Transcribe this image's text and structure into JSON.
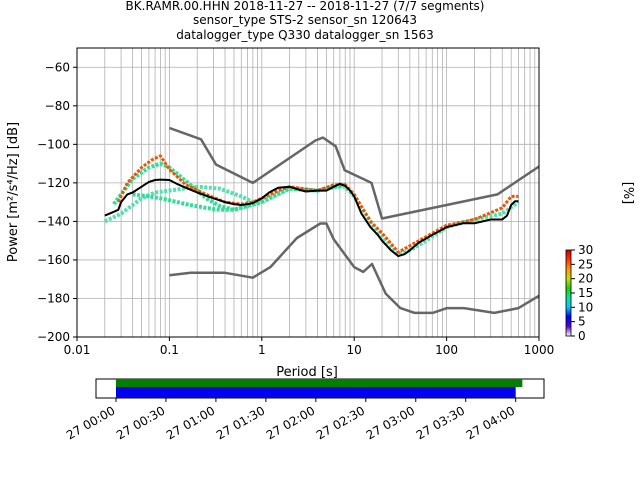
{
  "figure": {
    "title_lines": [
      "BK.RAMR.00.HHN   2018-11-27 -- 2018-11-27  (7/7 segments)",
      "sensor_type STS-2 sensor_sn 120643",
      "datalogger_type Q330 datalogger_sn 1563"
    ]
  },
  "chart_data": [
    {
      "type": "heatmap",
      "title": "BK.RAMR.00.HHN   2018-11-27 -- 2018-11-27  (7/7 segments)",
      "xlabel": "Period [s]",
      "ylabel": "Power [m²/s⁴/Hz] [dB]",
      "xscale": "log",
      "xlim": [
        0.01,
        1000
      ],
      "ylim": [
        -200,
        -50
      ],
      "xticks": [
        0.01,
        0.1,
        1,
        10,
        100,
        1000
      ],
      "xtick_labels": [
        "0.01",
        "0.1",
        "1",
        "10",
        "100",
        "1000"
      ],
      "yticks": [
        -200,
        -180,
        -160,
        -140,
        -120,
        -100,
        -80,
        -60
      ],
      "ytick_labels": [
        "−200",
        "−180",
        "−160",
        "−140",
        "−120",
        "−100",
        "−80",
        "−60"
      ],
      "grid": true,
      "series": [
        {
          "name": "",
          "role": "noise-model-high",
          "color": "#666666",
          "x": [
            0.1,
            0.22,
            0.32,
            0.8,
            3.8,
            4.6,
            6.3,
            7.9,
            15.4,
            20,
            354.8,
            1000
          ],
          "y": [
            -91.5,
            -97.4,
            -110.5,
            -120,
            -98,
            -96.5,
            -101,
            -113.5,
            -120,
            -138.5,
            -126,
            -111.5
          ]
        },
        {
          "name": "",
          "role": "noise-model-low",
          "color": "#666666",
          "x": [
            0.1,
            0.17,
            0.4,
            0.8,
            1.24,
            2.4,
            4.3,
            5,
            6,
            10,
            12.5,
            15.6,
            21.9,
            31.6,
            45,
            70.8,
            101,
            154,
            328,
            600,
            1000
          ],
          "y": [
            -168,
            -166.7,
            -166.7,
            -169.2,
            -163.7,
            -148.6,
            -141.1,
            -141.1,
            -149.3,
            -163.7,
            -166.2,
            -162.1,
            -177.5,
            -185,
            -187.5,
            -187.5,
            -185,
            -185,
            -187.5,
            -185,
            -178.6
          ]
        },
        {
          "name": "",
          "role": "mode",
          "color": "#000000",
          "x": [
            0.02,
            0.025,
            0.028,
            0.03,
            0.035,
            0.04,
            0.05,
            0.06,
            0.07,
            0.08,
            0.1,
            0.12,
            0.15,
            0.2,
            0.3,
            0.4,
            0.5,
            0.6,
            0.7,
            0.8,
            1,
            1.2,
            1.5,
            2,
            2.5,
            3,
            4,
            5,
            6,
            7,
            8,
            9,
            10,
            12,
            15,
            18,
            20,
            25,
            30,
            35,
            40,
            50,
            70,
            100,
            150,
            200,
            300,
            400,
            450,
            500,
            550,
            600
          ],
          "y": [
            -137,
            -135,
            -134,
            -130,
            -126,
            -125,
            -122,
            -119.5,
            -118.5,
            -118.3,
            -118.5,
            -120.5,
            -122.5,
            -125,
            -128,
            -130,
            -131,
            -131.5,
            -131,
            -130.5,
            -128,
            -125,
            -122.5,
            -122,
            -123.5,
            -124.5,
            -124,
            -124,
            -122,
            -120.5,
            -121.5,
            -124,
            -127,
            -136,
            -143,
            -147,
            -150,
            -155,
            -158,
            -157,
            -155,
            -151,
            -147,
            -143,
            -141,
            -141,
            -139,
            -139,
            -137,
            -131.5,
            -129.5,
            -129.5
          ]
        }
      ],
      "heatmap_bands": [
        {
          "label": "",
          "density_pct": 6,
          "color": "#55e0b0",
          "x": [
            0.02,
            0.03,
            0.05,
            0.07,
            0.1,
            0.2,
            0.35,
            0.6,
            0.8,
            1,
            2,
            4,
            6,
            8,
            10,
            15,
            20,
            25,
            30,
            40,
            60,
            100,
            200,
            400,
            600
          ],
          "y": [
            -140,
            -136,
            -128,
            -125,
            -124,
            -122,
            -123,
            -127,
            -130,
            -129,
            -123,
            -124,
            -122,
            -122,
            -127,
            -140,
            -149,
            -154,
            -157,
            -155,
            -150,
            -143,
            -139,
            -136,
            -130
          ]
        },
        {
          "label": "",
          "density_pct": 7,
          "color": "#33dd99",
          "x": [
            0.025,
            0.04,
            0.06,
            0.08,
            0.1,
            0.15,
            0.25,
            0.35,
            0.5,
            0.7,
            1,
            2,
            4,
            8
          ],
          "y": [
            -131,
            -118,
            -112,
            -110,
            -112,
            -119,
            -128,
            -132,
            -134,
            -132,
            -130,
            -123,
            -124,
            -121
          ]
        },
        {
          "label": "",
          "density_pct": 7,
          "color": "#33dd99",
          "x": [
            0.04,
            0.06,
            0.08,
            0.1,
            0.15,
            0.25,
            0.35,
            0.5,
            0.7,
            1
          ],
          "y": [
            -126,
            -127,
            -128,
            -129,
            -131,
            -133,
            -134,
            -134,
            -132,
            -130
          ]
        },
        {
          "label": "",
          "density_pct": 24,
          "color": "#ee5500",
          "x": [
            0.028,
            0.035,
            0.05,
            0.065,
            0.08,
            0.1,
            0.15,
            0.25,
            0.4,
            0.6,
            0.8,
            1,
            1.5,
            2,
            4,
            6,
            8,
            10,
            15,
            20,
            30,
            50,
            100,
            200,
            400,
            500,
            600
          ],
          "y": [
            -130,
            -120,
            -112,
            -108,
            -106,
            -113,
            -121,
            -126,
            -130,
            -131,
            -130,
            -128,
            -124,
            -122,
            -124,
            -121,
            -121,
            -126,
            -140,
            -146,
            -156,
            -150,
            -142,
            -139,
            -133,
            -127,
            -127
          ]
        }
      ],
      "colorbar": {
        "label": "[%]",
        "min": 0,
        "max": 30,
        "ticks": [
          0,
          5,
          10,
          15,
          20,
          25,
          30
        ],
        "colors": [
          "#ffffff",
          "#5a00d0",
          "#0000ff",
          "#00c8ff",
          "#00e8a0",
          "#20d000",
          "#c8e000",
          "#ff9900",
          "#ff3300",
          "#c80000"
        ]
      }
    },
    {
      "type": "timeline",
      "xtick_labels": [
        "27 00:00",
        "27 00:30",
        "27 01:00",
        "27 01:30",
        "27 02:00",
        "27 02:30",
        "27 03:00",
        "27 03:30",
        "27 04:00"
      ],
      "bars": [
        {
          "name": "",
          "color": "#008000",
          "start": "27 00:00",
          "end": "27 04:04",
          "start_min": 0,
          "end_min": 244
        },
        {
          "name": "",
          "color": "#0000ee",
          "start": "27 00:00",
          "end": "27 04:00",
          "start_min": 0,
          "end_min": 240
        }
      ],
      "window_start_min": -12,
      "window_end_min": 257
    }
  ]
}
